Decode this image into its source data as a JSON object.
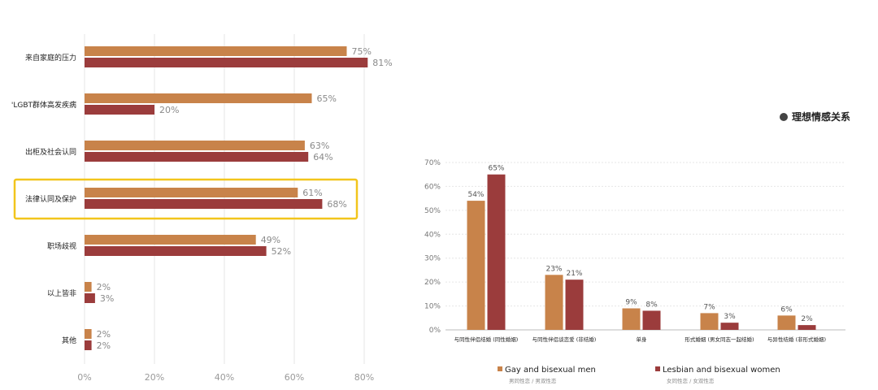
{
  "colors": {
    "series1": "#c8834a",
    "series2": "#9b3c3c",
    "highlight": "#f2c51c",
    "grid": "#e6e6e6",
    "axis": "#bbbbbb"
  },
  "chart_data": [
    {
      "type": "bar",
      "orientation": "horizontal",
      "categories": [
        "来自家庭的压力",
        "'LGBT群体高发疾病",
        "出柜及社会认同",
        "法律认同及保护",
        "职场歧视",
        "以上皆非",
        "其他"
      ],
      "series": [
        {
          "name": "series-1",
          "values": [
            75,
            65,
            63,
            61,
            49,
            2,
            2
          ]
        },
        {
          "name": "series-2",
          "values": [
            81,
            20,
            64,
            68,
            52,
            3,
            2
          ]
        }
      ],
      "value_labels": [
        [
          "75%",
          "65%",
          "63%",
          "61%",
          "49%",
          "2%",
          "2%"
        ],
        [
          "81%",
          "20%",
          "64%",
          "68%",
          "52%",
          "3%",
          "2%"
        ]
      ],
      "xlim": [
        0,
        80
      ],
      "xticks": [
        "0%",
        "20%",
        "40%",
        "60%",
        "80%"
      ],
      "highlighted_category": "法律认同及保护"
    },
    {
      "type": "bar",
      "orientation": "vertical",
      "title": "理想情感关系",
      "categories": [
        "与同性伴侣结婚 (同性婚姻)",
        "与同性伴侣谈恋爱 (非结婚)",
        "单身",
        "形式婚姻 (男女同志一起结婚)",
        "与异性结婚 (非形式婚姻)"
      ],
      "series": [
        {
          "name": "Gay and bisexual men",
          "subname": "男同性恋 / 男双性恋",
          "values": [
            54,
            23,
            9,
            7,
            6
          ]
        },
        {
          "name": "Lesbian and bisexual women",
          "subname": "女同性恋 / 女双性恋",
          "values": [
            65,
            21,
            8,
            3,
            2
          ]
        }
      ],
      "value_labels": [
        [
          "54%",
          "23%",
          "9%",
          "7%",
          "6%"
        ],
        [
          "65%",
          "21%",
          "8%",
          "3%",
          "2%"
        ]
      ],
      "ylim": [
        0,
        70
      ],
      "yticks": [
        "0%",
        "10%",
        "20%",
        "30%",
        "40%",
        "50%",
        "60%",
        "70%"
      ],
      "legend": "bottom"
    }
  ]
}
